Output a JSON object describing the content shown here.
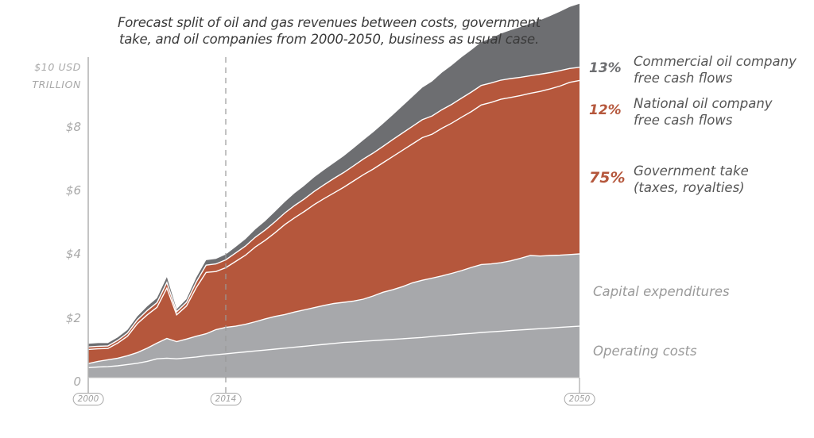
{
  "chart_data": {
    "type": "area",
    "stacked": true,
    "title": "Forecast split of oil and gas revenues between costs, government take, and oil companies from 2000-2050, business as usual case.",
    "xlabel": "",
    "ylabel": "$10 USD TRILLION",
    "y_unit_label_line1": "$10 USD",
    "y_unit_label_line2": "TRILLION",
    "ylim": [
      0,
      10
    ],
    "xlim": [
      2000,
      2050
    ],
    "ytick_labels": [
      "0",
      "$2",
      "$4",
      "$6",
      "$8"
    ],
    "ytick_values": [
      0,
      2,
      4,
      6,
      8
    ],
    "xtick_labels": [
      "2000",
      "2014",
      "2050"
    ],
    "xtick_values": [
      2000,
      2014,
      2050
    ],
    "reference_line": {
      "year": 2014,
      "style": "dashed"
    },
    "grid": false,
    "legend_placement": "right",
    "x": [
      2000,
      2001,
      2002,
      2003,
      2004,
      2005,
      2006,
      2007,
      2008,
      2009,
      2010,
      2011,
      2012,
      2013,
      2014,
      2015,
      2016,
      2017,
      2018,
      2019,
      2020,
      2021,
      2022,
      2023,
      2024,
      2025,
      2026,
      2027,
      2028,
      2029,
      2030,
      2031,
      2032,
      2033,
      2034,
      2035,
      2036,
      2037,
      2038,
      2039,
      2040,
      2041,
      2042,
      2043,
      2044,
      2045,
      2046,
      2047,
      2048,
      2049,
      2050
    ],
    "series": [
      {
        "name": "Operating costs",
        "color": "#a7a8ab",
        "values": [
          0.32,
          0.34,
          0.35,
          0.38,
          0.42,
          0.46,
          0.52,
          0.6,
          0.62,
          0.6,
          0.63,
          0.66,
          0.7,
          0.73,
          0.76,
          0.79,
          0.82,
          0.85,
          0.88,
          0.91,
          0.94,
          0.97,
          1.0,
          1.03,
          1.06,
          1.09,
          1.12,
          1.14,
          1.16,
          1.18,
          1.2,
          1.22,
          1.24,
          1.26,
          1.28,
          1.31,
          1.34,
          1.36,
          1.39,
          1.41,
          1.44,
          1.46,
          1.48,
          1.5,
          1.52,
          1.54,
          1.56,
          1.58,
          1.6,
          1.62,
          1.64
        ]
      },
      {
        "name": "Capital expenditures",
        "color": "#a7a8ab",
        "values": [
          0.13,
          0.18,
          0.22,
          0.24,
          0.28,
          0.34,
          0.42,
          0.5,
          0.63,
          0.55,
          0.6,
          0.66,
          0.7,
          0.8,
          0.84,
          0.85,
          0.88,
          0.93,
          0.99,
          1.04,
          1.07,
          1.12,
          1.16,
          1.2,
          1.24,
          1.27,
          1.28,
          1.3,
          1.34,
          1.42,
          1.52,
          1.58,
          1.66,
          1.76,
          1.82,
          1.86,
          1.9,
          1.96,
          2.02,
          2.1,
          2.16,
          2.16,
          2.18,
          2.22,
          2.28,
          2.35,
          2.31,
          2.31,
          2.3,
          2.3,
          2.3
        ]
      },
      {
        "name": "Government take (taxes, royalties)",
        "color": "#b5573c",
        "share_label": "75%",
        "values": [
          0.45,
          0.4,
          0.36,
          0.48,
          0.62,
          0.92,
          1.06,
          1.14,
          1.6,
          0.85,
          1.05,
          1.55,
          1.95,
          1.85,
          1.9,
          2.06,
          2.2,
          2.38,
          2.5,
          2.66,
          2.86,
          3.0,
          3.13,
          3.28,
          3.4,
          3.52,
          3.66,
          3.82,
          3.96,
          4.04,
          4.12,
          4.24,
          4.34,
          4.42,
          4.54,
          4.58,
          4.7,
          4.78,
          4.88,
          4.96,
          5.08,
          5.14,
          5.2,
          5.2,
          5.18,
          5.16,
          5.24,
          5.3,
          5.38,
          5.48,
          5.52
        ]
      },
      {
        "name": "National oil company free cash flows",
        "color": "#b5573c",
        "share_label": "12%",
        "values": [
          0.08,
          0.08,
          0.08,
          0.09,
          0.1,
          0.12,
          0.14,
          0.15,
          0.18,
          0.1,
          0.12,
          0.18,
          0.23,
          0.24,
          0.25,
          0.27,
          0.29,
          0.31,
          0.33,
          0.35,
          0.37,
          0.39,
          0.4,
          0.42,
          0.44,
          0.46,
          0.47,
          0.48,
          0.5,
          0.51,
          0.52,
          0.54,
          0.55,
          0.56,
          0.57,
          0.58,
          0.59,
          0.6,
          0.61,
          0.62,
          0.62,
          0.62,
          0.61,
          0.6,
          0.58,
          0.56,
          0.55,
          0.52,
          0.49,
          0.44,
          0.42
        ]
      },
      {
        "name": "Commercial oil company free cash flows",
        "color": "#6d6e71",
        "share_label": "13%",
        "values": [
          0.1,
          0.1,
          0.09,
          0.09,
          0.1,
          0.11,
          0.13,
          0.14,
          0.17,
          0.08,
          0.1,
          0.14,
          0.16,
          0.16,
          0.17,
          0.19,
          0.22,
          0.25,
          0.28,
          0.32,
          0.35,
          0.39,
          0.42,
          0.45,
          0.47,
          0.49,
          0.52,
          0.56,
          0.6,
          0.66,
          0.72,
          0.78,
          0.86,
          0.94,
          1.02,
          1.1,
          1.18,
          1.24,
          1.3,
          1.34,
          1.38,
          1.42,
          1.48,
          1.54,
          1.6,
          1.66,
          1.72,
          1.8,
          1.88,
          1.96,
          2.02
        ]
      }
    ]
  },
  "legend": {
    "commercial": {
      "pct": "13%",
      "line1": "Commercial oil company",
      "line2": "free cash flows",
      "pct_color": "#6d6e71"
    },
    "national": {
      "pct": "12%",
      "line1": "National oil company",
      "line2": "free cash flows",
      "pct_color": "#b5573c"
    },
    "government": {
      "pct": "75%",
      "line1": "Government take",
      "line2": "(taxes, royalties)",
      "pct_color": "#b5573c"
    },
    "capex": {
      "label": "Capital expenditures"
    },
    "opex": {
      "label": "Operating costs"
    }
  },
  "title_line1": "Forecast split of oil and gas revenues between costs, government",
  "title_line2": "take, and oil companies from 2000-2050, business as usual case."
}
